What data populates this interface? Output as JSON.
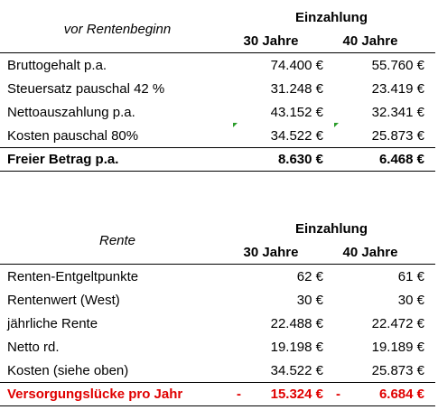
{
  "table1": {
    "header": {
      "label": "vor Rentenbeginn",
      "group": "Einzahlung",
      "columns": [
        "30 Jahre",
        "40 Jahre"
      ]
    },
    "rows": [
      [
        "Bruttogehalt p.a.",
        "74.400 €",
        "55.760 €"
      ],
      [
        "Steuersatz pauschal 42 %",
        "31.248 €",
        "23.419 €"
      ],
      [
        "Nettoauszahlung p.a.",
        "43.152 €",
        "32.341 €"
      ],
      [
        "Kosten pauschal 80%",
        "34.522 €",
        "25.873 €"
      ]
    ],
    "total": [
      "Freier Betrag p.a.",
      "8.630 €",
      "6.468 €"
    ]
  },
  "table2": {
    "header": {
      "label": "Rente",
      "group": "Einzahlung",
      "columns": [
        "30 Jahre",
        "40 Jahre"
      ]
    },
    "rows": [
      [
        "Renten-Entgeltpunkte",
        "62 €",
        "61 €"
      ],
      [
        "Rentenwert (West)",
        "30 €",
        "30 €"
      ],
      [
        "jährliche Rente",
        "22.488 €",
        "22.472 €"
      ],
      [
        "Netto rd.",
        "19.198 €",
        "19.189 €"
      ],
      [
        "Kosten (siehe oben)",
        "34.522 €",
        "25.873 €"
      ]
    ],
    "total": {
      "label": "Versorgungslücke pro Jahr",
      "cells": [
        {
          "sign": "-",
          "value": "15.324 €"
        },
        {
          "sign": "-",
          "value": "6.684 €"
        }
      ]
    }
  }
}
